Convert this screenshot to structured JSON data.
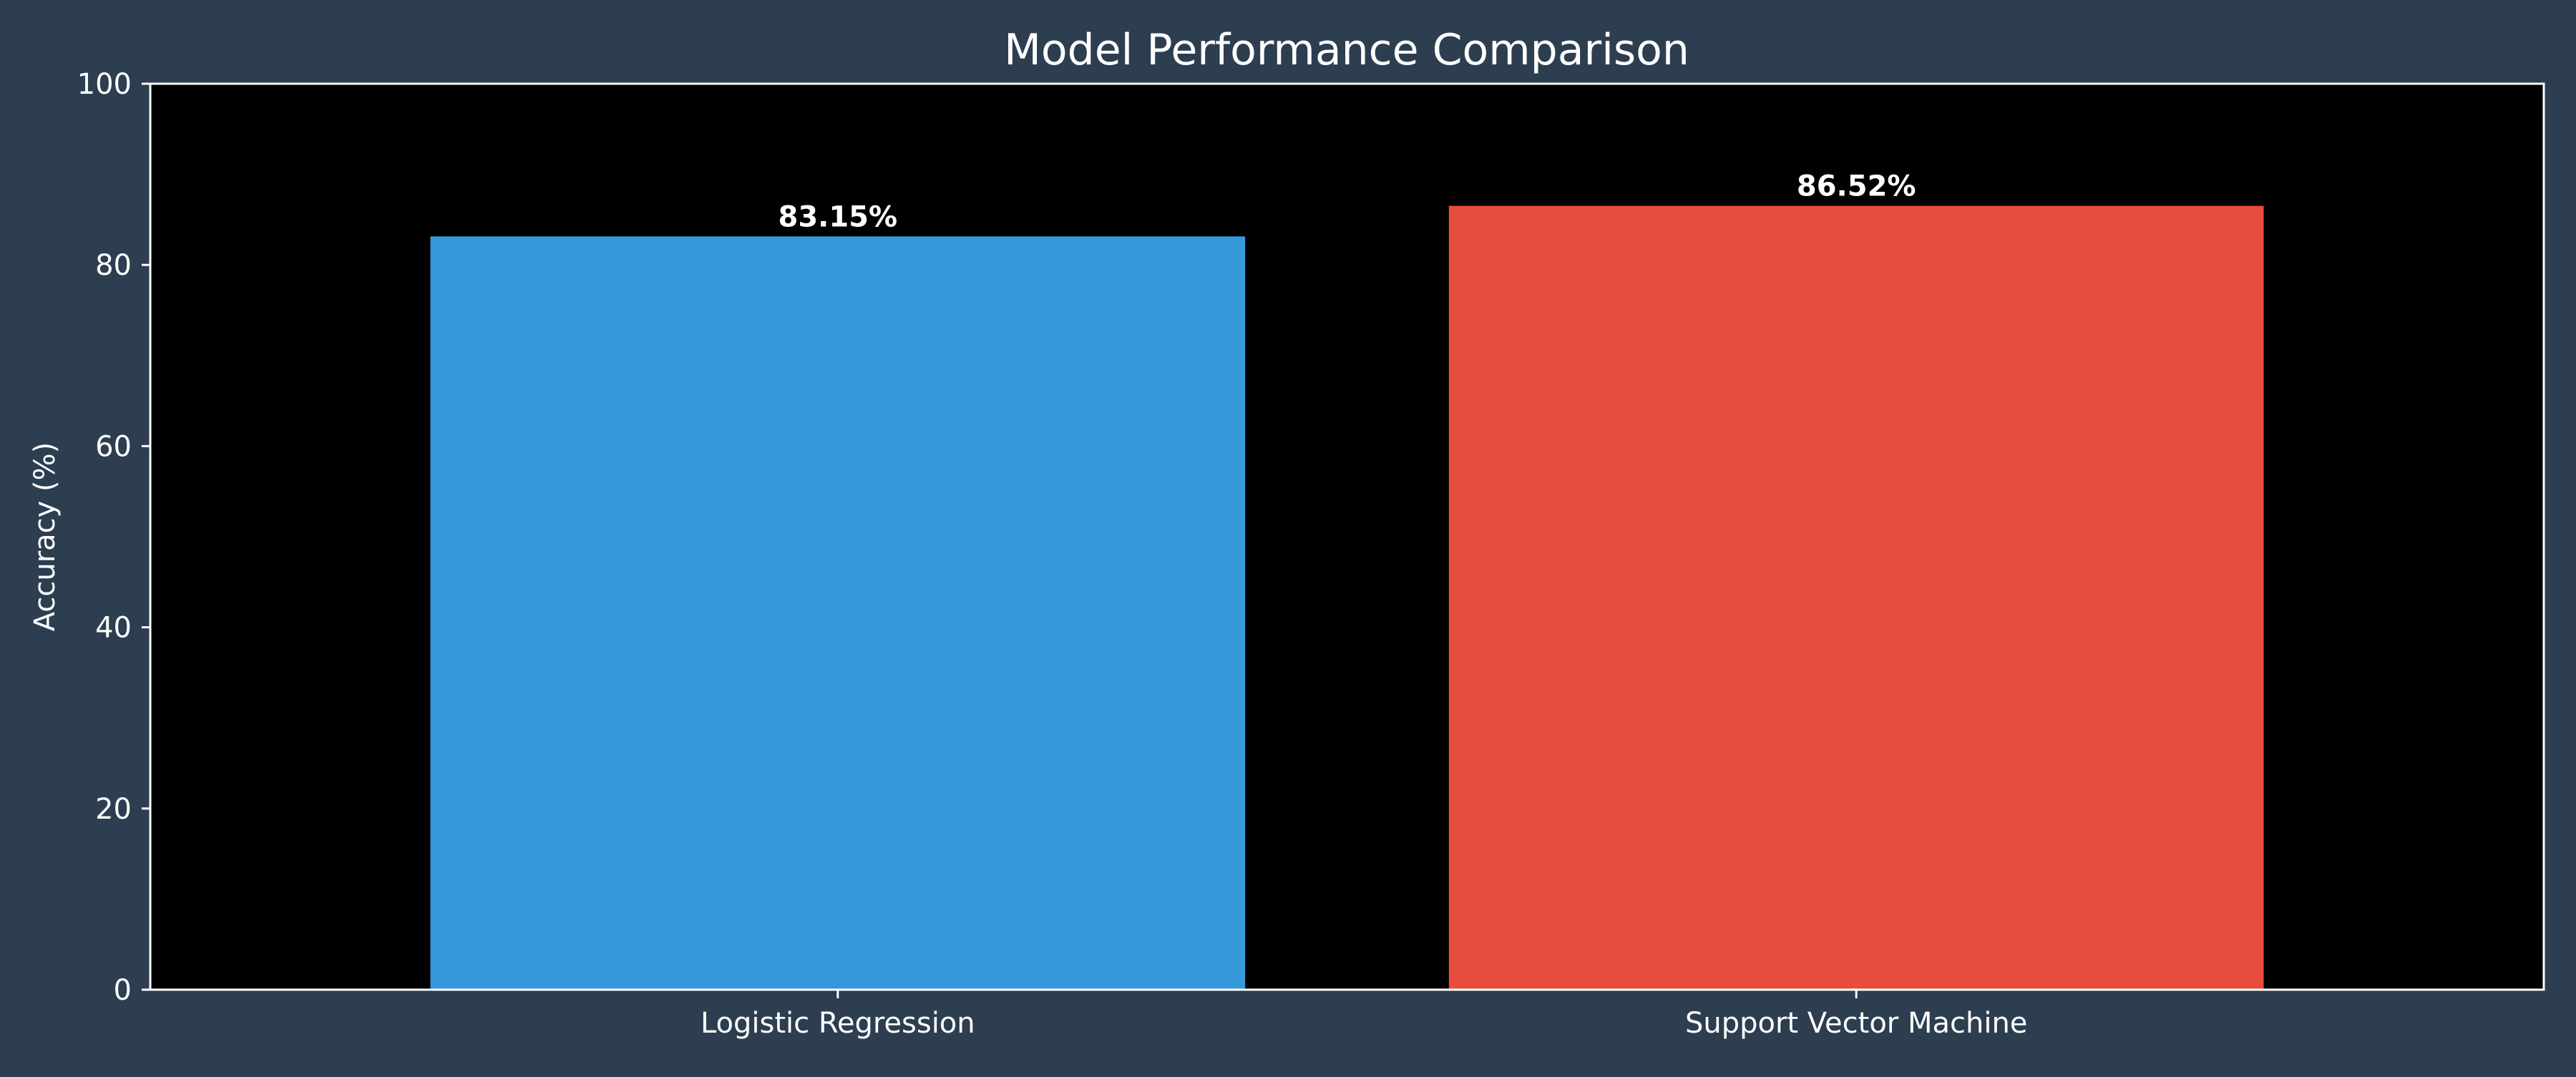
{
  "chart_data": {
    "type": "bar",
    "title": "Model Performance Comparison",
    "xlabel": "",
    "ylabel": "Accuracy (%)",
    "ylim": [
      0,
      100
    ],
    "yticks": [
      0,
      20,
      40,
      60,
      80,
      100
    ],
    "categories": [
      "Logistic Regression",
      "Support Vector Machine"
    ],
    "values": [
      83.15,
      86.52
    ],
    "value_labels": [
      "83.15%",
      "86.52%"
    ],
    "colors": [
      "#3498db",
      "#e74c3c"
    ],
    "grid": false,
    "legend": "none",
    "figure_background": "#2c3e50",
    "plot_background": "#000000",
    "text_color": "#ffffff"
  }
}
